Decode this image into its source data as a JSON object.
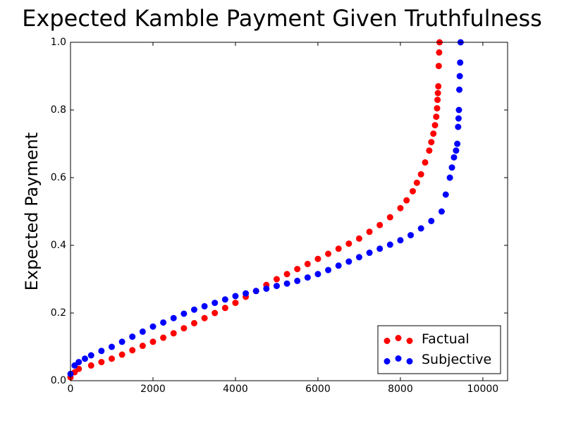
{
  "chart_data": {
    "type": "scatter",
    "title": "Expected Kamble Payment Given Truthfulness",
    "y_label": "Expected Payment",
    "xlim": [
      0,
      10600
    ],
    "ylim": [
      0,
      1
    ],
    "xticks": [
      0,
      2000,
      4000,
      6000,
      8000,
      10000
    ],
    "yticks": [
      {
        "value": 0,
        "label": "0.0"
      },
      0.2,
      0.4,
      0.6,
      0.8,
      {
        "value": 1,
        "label": "1.0"
      }
    ],
    "legend": "lower right",
    "series": [
      {
        "name": "Factual",
        "color": "#ff0000",
        "x": [
          0,
          100,
          200,
          500,
          750,
          1000,
          1250,
          1500,
          1750,
          2000,
          2250,
          2500,
          2750,
          3000,
          3250,
          3500,
          3750,
          4000,
          4250,
          4500,
          4750,
          5000,
          5250,
          5500,
          5750,
          6000,
          6250,
          6500,
          6750,
          7000,
          7250,
          7500,
          7750,
          8000,
          8150,
          8300,
          8400,
          8500,
          8600,
          8700,
          8750,
          8800,
          8840,
          8870,
          8890,
          8900,
          8910,
          8920,
          8930,
          8940,
          8950
        ],
        "values": [
          0.01,
          0.025,
          0.035,
          0.045,
          0.055,
          0.065,
          0.077,
          0.09,
          0.103,
          0.115,
          0.127,
          0.14,
          0.155,
          0.17,
          0.185,
          0.2,
          0.215,
          0.23,
          0.248,
          0.265,
          0.283,
          0.3,
          0.315,
          0.33,
          0.345,
          0.36,
          0.375,
          0.39,
          0.405,
          0.42,
          0.44,
          0.46,
          0.483,
          0.51,
          0.533,
          0.56,
          0.585,
          0.61,
          0.645,
          0.68,
          0.705,
          0.73,
          0.755,
          0.78,
          0.805,
          0.83,
          0.85,
          0.87,
          0.93,
          0.97,
          1.0
        ]
      },
      {
        "name": "Subjective",
        "color": "#0000ff",
        "x": [
          0,
          100,
          200,
          350,
          500,
          750,
          1000,
          1250,
          1500,
          1750,
          2000,
          2250,
          2500,
          2750,
          3000,
          3250,
          3500,
          3750,
          4000,
          4250,
          4500,
          4750,
          5000,
          5250,
          5500,
          5750,
          6000,
          6250,
          6500,
          6750,
          7000,
          7250,
          7500,
          7750,
          8000,
          8250,
          8500,
          8750,
          9000,
          9100,
          9200,
          9250,
          9300,
          9350,
          9380,
          9400,
          9410,
          9420,
          9430,
          9440,
          9450,
          9460
        ],
        "values": [
          0.02,
          0.045,
          0.055,
          0.065,
          0.075,
          0.088,
          0.1,
          0.115,
          0.13,
          0.145,
          0.16,
          0.172,
          0.185,
          0.198,
          0.21,
          0.22,
          0.23,
          0.24,
          0.25,
          0.258,
          0.265,
          0.272,
          0.28,
          0.287,
          0.295,
          0.305,
          0.315,
          0.327,
          0.34,
          0.352,
          0.365,
          0.378,
          0.39,
          0.402,
          0.415,
          0.43,
          0.45,
          0.472,
          0.5,
          0.55,
          0.6,
          0.63,
          0.66,
          0.68,
          0.7,
          0.75,
          0.775,
          0.8,
          0.86,
          0.9,
          0.94,
          1.0
        ]
      }
    ]
  }
}
